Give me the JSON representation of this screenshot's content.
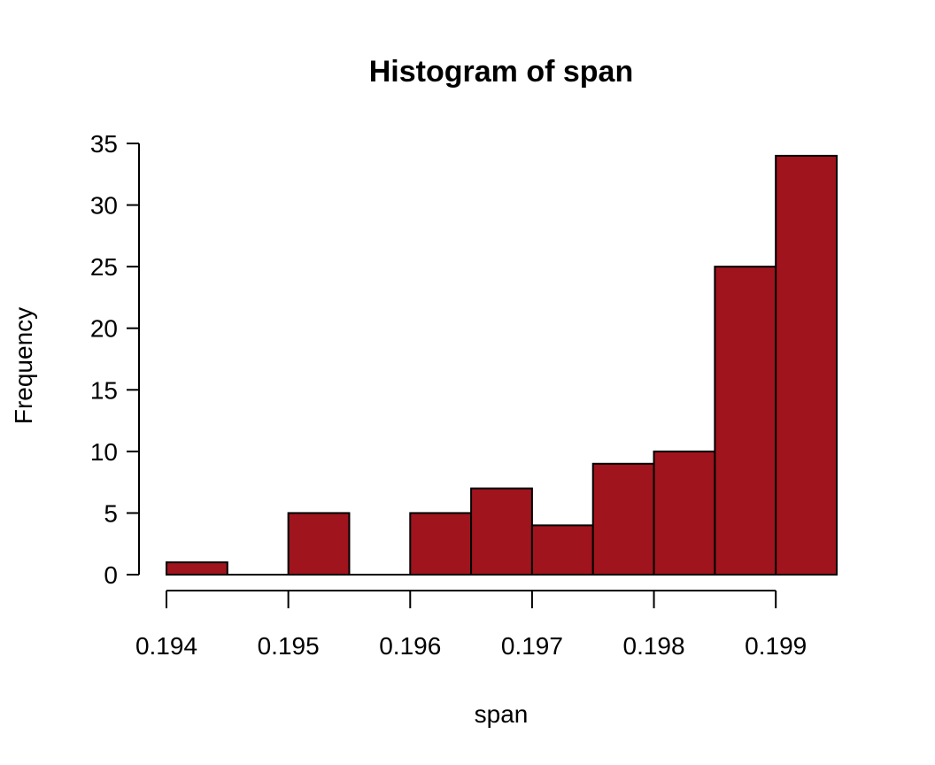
{
  "chart_data": {
    "type": "bar",
    "title": "Histogram of span",
    "xlabel": "span",
    "ylabel": "Frequency",
    "bin_edges": [
      0.194,
      0.1945,
      0.195,
      0.1955,
      0.196,
      0.1965,
      0.197,
      0.1975,
      0.198,
      0.1985,
      0.199,
      0.1995
    ],
    "values": [
      1,
      0,
      5,
      0,
      5,
      7,
      4,
      9,
      10,
      25,
      34
    ],
    "xlim": [
      0.194,
      0.1995
    ],
    "ylim": [
      0,
      35
    ],
    "x_ticks": [
      "0.194",
      "0.195",
      "0.196",
      "0.197",
      "0.198",
      "0.199"
    ],
    "y_ticks": [
      "0",
      "5",
      "10",
      "15",
      "20",
      "25",
      "30",
      "35"
    ],
    "grid": false,
    "bar_color": "#a0141d"
  }
}
